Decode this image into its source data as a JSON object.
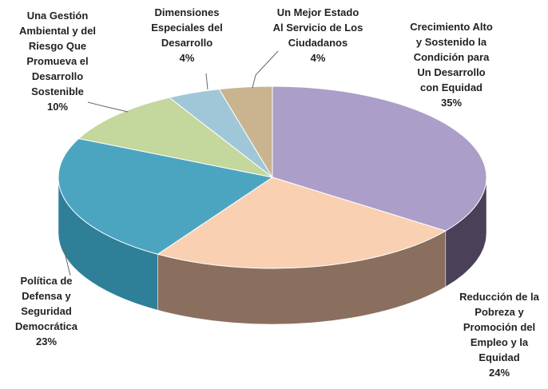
{
  "chart_data": {
    "type": "pie3d",
    "categories": [
      "Crecimiento Alto\ny Sostenido la\nCondición para\nUn Desarrollo\ncon Equidad",
      "Reducción de la\nPobreza y\nPromoción del\nEmpleo y la\nEquidad",
      "Política de\nDefensa y\nSeguridad\nDemocrática",
      "Una Gestión\nAmbiental y del\nRiesgo Que\nPromueva el\nDesarrollo\nSostenible",
      "Dimensiones\nEspeciales del\nDesarrollo",
      "Un Mejor Estado\nAl Servicio de Los\nCiudadanos"
    ],
    "values": [
      35,
      24,
      23,
      10,
      4,
      4
    ],
    "value_labels": [
      "35%",
      "24%",
      "23%",
      "10%",
      "4%",
      "4%"
    ],
    "colors": [
      "#ab9fc9",
      "#f9d0b2",
      "#4ba5c1",
      "#c4d79c",
      "#a0c7d8",
      "#c9b48f"
    ],
    "side_colors": [
      "#4a4058",
      "#8a6f5e",
      "#2f7f99",
      "#7f8f5a",
      "#5a8a9e",
      "#8a7050"
    ]
  }
}
